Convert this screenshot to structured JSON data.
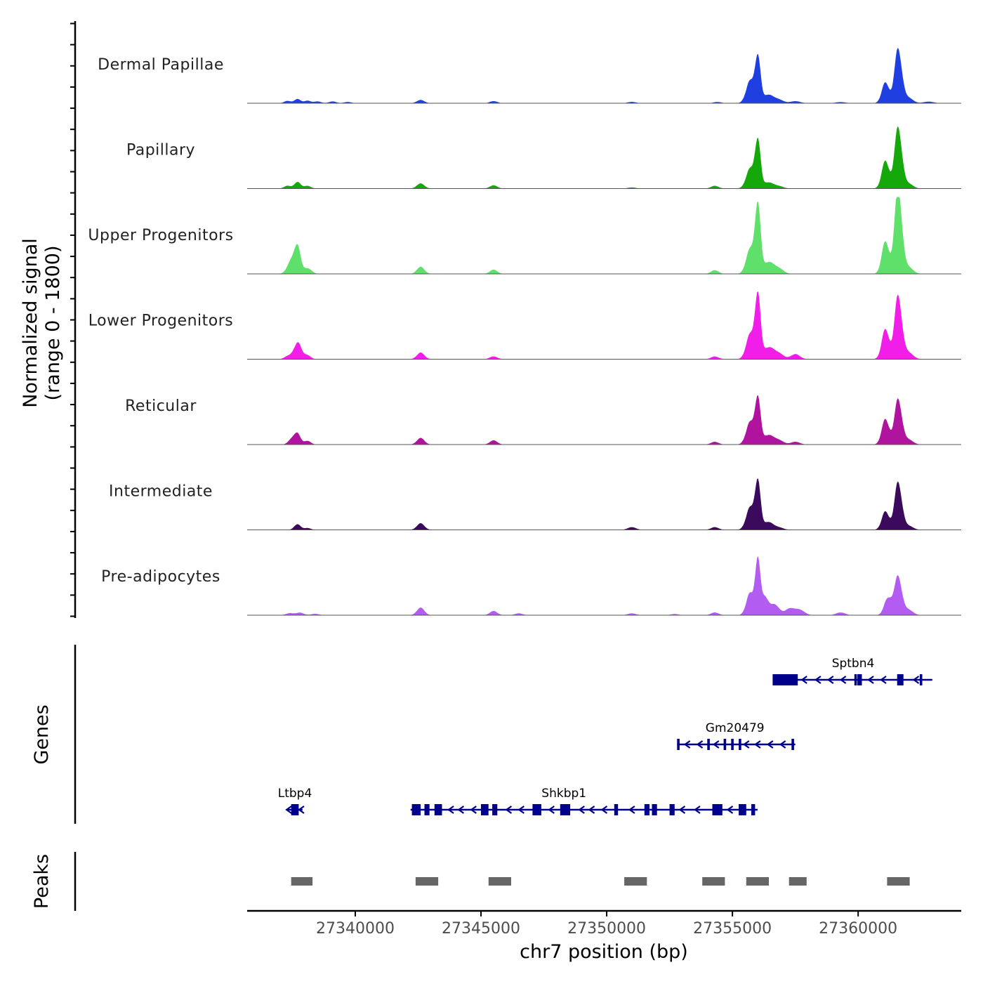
{
  "chart_data": {
    "type": "area",
    "title": "",
    "ylabel_line1": "Normalized signal",
    "ylabel_line2": "(range 0 - 1800)",
    "ylim": [
      0,
      1800
    ],
    "xlabel": "chr7 position (bp)",
    "xlim": [
      27335700,
      27364100
    ],
    "xticks": [
      27340000,
      27345000,
      27350000,
      27355000,
      27360000
    ],
    "xtick_labels": [
      "27340000",
      "27345000",
      "27350000",
      "27355000",
      "27360000"
    ],
    "tracks": [
      {
        "name": "Dermal Papillae",
        "color": "#1f3fe0",
        "peaks": [
          [
            27337300,
            50,
            130
          ],
          [
            27337700,
            90,
            130
          ],
          [
            27338100,
            55,
            130
          ],
          [
            27338500,
            40,
            140
          ],
          [
            27339100,
            40,
            140
          ],
          [
            27339700,
            28,
            140
          ],
          [
            27342600,
            70,
            150
          ],
          [
            27345500,
            45,
            150
          ],
          [
            27351000,
            30,
            160
          ],
          [
            27354400,
            28,
            150
          ],
          [
            27355700,
            450,
            160
          ],
          [
            27356000,
            1000,
            110
          ],
          [
            27356400,
            180,
            180
          ],
          [
            27356800,
            90,
            200
          ],
          [
            27357500,
            45,
            200
          ],
          [
            27359300,
            25,
            200
          ],
          [
            27361100,
            450,
            150
          ],
          [
            27361600,
            1200,
            140
          ],
          [
            27362000,
            120,
            180
          ],
          [
            27362800,
            35,
            200
          ]
        ]
      },
      {
        "name": "Papillary",
        "color": "#14a80a",
        "peaks": [
          [
            27337300,
            60,
            130
          ],
          [
            27337700,
            140,
            130
          ],
          [
            27338100,
            60,
            130
          ],
          [
            27342600,
            110,
            150
          ],
          [
            27345500,
            70,
            150
          ],
          [
            27351000,
            25,
            160
          ],
          [
            27354300,
            60,
            150
          ],
          [
            27355700,
            400,
            160
          ],
          [
            27356000,
            1050,
            110
          ],
          [
            27356400,
            130,
            180
          ],
          [
            27356800,
            60,
            200
          ],
          [
            27361100,
            600,
            150
          ],
          [
            27361600,
            1350,
            140
          ],
          [
            27362000,
            110,
            180
          ]
        ]
      },
      {
        "name": "Upper Progenitors",
        "color": "#5fe06a",
        "peaks": [
          [
            27337500,
            300,
            180
          ],
          [
            27337700,
            450,
            130
          ],
          [
            27338100,
            120,
            160
          ],
          [
            27342600,
            150,
            150
          ],
          [
            27345500,
            90,
            150
          ],
          [
            27354300,
            80,
            150
          ],
          [
            27355700,
            500,
            160
          ],
          [
            27356000,
            1500,
            110
          ],
          [
            27356400,
            250,
            180
          ],
          [
            27356800,
            140,
            200
          ],
          [
            27361100,
            700,
            150
          ],
          [
            27361600,
            1900,
            140
          ],
          [
            27362000,
            150,
            180
          ]
        ]
      },
      {
        "name": "Lower Progenitors",
        "color": "#f01ee8",
        "peaks": [
          [
            27337300,
            60,
            130
          ],
          [
            27337700,
            350,
            160
          ],
          [
            27338100,
            80,
            130
          ],
          [
            27342600,
            140,
            150
          ],
          [
            27345500,
            60,
            150
          ],
          [
            27354300,
            60,
            150
          ],
          [
            27355700,
            500,
            160
          ],
          [
            27356000,
            1400,
            110
          ],
          [
            27356400,
            250,
            180
          ],
          [
            27356800,
            150,
            200
          ],
          [
            27357500,
            110,
            180
          ],
          [
            27361100,
            650,
            150
          ],
          [
            27361600,
            1400,
            140
          ],
          [
            27362000,
            150,
            180
          ]
        ]
      },
      {
        "name": "Reticular",
        "color": "#b0139e",
        "peaks": [
          [
            27337500,
            120,
            150
          ],
          [
            27337700,
            200,
            130
          ],
          [
            27338100,
            80,
            130
          ],
          [
            27342600,
            140,
            150
          ],
          [
            27345500,
            90,
            150
          ],
          [
            27354300,
            60,
            150
          ],
          [
            27355700,
            450,
            160
          ],
          [
            27356000,
            1000,
            110
          ],
          [
            27356400,
            200,
            180
          ],
          [
            27356800,
            110,
            200
          ],
          [
            27357500,
            60,
            180
          ],
          [
            27361100,
            550,
            150
          ],
          [
            27361600,
            1000,
            140
          ],
          [
            27362000,
            110,
            180
          ]
        ]
      },
      {
        "name": "Intermediate",
        "color": "#3b0a5c",
        "peaks": [
          [
            27337700,
            120,
            130
          ],
          [
            27338100,
            40,
            130
          ],
          [
            27342600,
            140,
            150
          ],
          [
            27351000,
            60,
            160
          ],
          [
            27354300,
            60,
            150
          ],
          [
            27355700,
            450,
            160
          ],
          [
            27356000,
            1050,
            110
          ],
          [
            27356400,
            170,
            180
          ],
          [
            27356800,
            60,
            200
          ],
          [
            27361100,
            400,
            150
          ],
          [
            27361600,
            1050,
            140
          ],
          [
            27362000,
            90,
            180
          ]
        ]
      },
      {
        "name": "Pre-adipocytes",
        "color": "#b35cf2",
        "peaks": [
          [
            27337400,
            45,
            150
          ],
          [
            27337800,
            55,
            150
          ],
          [
            27338400,
            30,
            150
          ],
          [
            27342600,
            160,
            150
          ],
          [
            27345500,
            90,
            150
          ],
          [
            27346500,
            40,
            150
          ],
          [
            27351000,
            40,
            160
          ],
          [
            27352700,
            25,
            160
          ],
          [
            27354300,
            60,
            150
          ],
          [
            27355700,
            450,
            150
          ],
          [
            27356000,
            1200,
            100
          ],
          [
            27356300,
            400,
            140
          ],
          [
            27356700,
            220,
            180
          ],
          [
            27357300,
            150,
            180
          ],
          [
            27357700,
            110,
            180
          ],
          [
            27359300,
            60,
            180
          ],
          [
            27361200,
            400,
            150
          ],
          [
            27361600,
            850,
            140
          ],
          [
            27362000,
            120,
            180
          ]
        ]
      }
    ],
    "genes_label": "Genes",
    "genes": [
      {
        "name": "Sptbn4",
        "row": 0,
        "start": 27356600,
        "end": 27362950,
        "label_pos": 27359800,
        "exons": [
          [
            27356600,
            27357600
          ],
          [
            27359850,
            27359950
          ],
          [
            27359970,
            27360150
          ],
          [
            27361550,
            27361800
          ],
          [
            27362450,
            27362550
          ]
        ],
        "arrows": [
          27357850,
          27358400,
          27358900,
          27359400,
          27360500,
          27361000,
          27362300
        ]
      },
      {
        "name": "Gm20479",
        "row": 1,
        "start": 27352800,
        "end": 27357500,
        "label_pos": 27355100,
        "exons": [
          [
            27352800,
            27352900
          ],
          [
            27354000,
            27354100
          ],
          [
            27354650,
            27354750
          ],
          [
            27354950,
            27355050
          ],
          [
            27355250,
            27355350
          ],
          [
            27357350,
            27357450
          ]
        ],
        "arrows": [
          27353200,
          27353700,
          27354350,
          27355550,
          27356000,
          27356500,
          27357000
        ]
      },
      {
        "name": "Ltbp4",
        "row": 2,
        "start": 27337300,
        "end": 27337900,
        "label_pos": 27337600,
        "exons": [
          [
            27337450,
            27337750
          ]
        ],
        "arrows": [
          27337350,
          27337850
        ]
      },
      {
        "name": "Shkbp1",
        "row": 2,
        "start": 27342200,
        "end": 27356000,
        "label_pos": 27348300,
        "exons": [
          [
            27342250,
            27342600
          ],
          [
            27342750,
            27342950
          ],
          [
            27343150,
            27343450
          ],
          [
            27345000,
            27345300
          ],
          [
            27345450,
            27345650
          ],
          [
            27347050,
            27347400
          ],
          [
            27348150,
            27348550
          ],
          [
            27350300,
            27350450
          ],
          [
            27351500,
            27351700
          ],
          [
            27351800,
            27352000
          ],
          [
            27352500,
            27352700
          ],
          [
            27354200,
            27354600
          ],
          [
            27355250,
            27355550
          ],
          [
            27355750,
            27355900
          ]
        ],
        "arrows": [
          27343800,
          27344200,
          27344700,
          27346100,
          27346600,
          27347800,
          27349000,
          27349400,
          27349900,
          27351000,
          27353000,
          27353600,
          27354900
        ]
      }
    ],
    "peaks_label": "Peaks",
    "peak_regions": [
      [
        27337450,
        27338300
      ],
      [
        27342400,
        27343300
      ],
      [
        27345300,
        27346200
      ],
      [
        27350700,
        27351600
      ],
      [
        27353800,
        27354700
      ],
      [
        27355550,
        27356450
      ],
      [
        27357250,
        27357950
      ],
      [
        27361150,
        27362050
      ]
    ]
  }
}
